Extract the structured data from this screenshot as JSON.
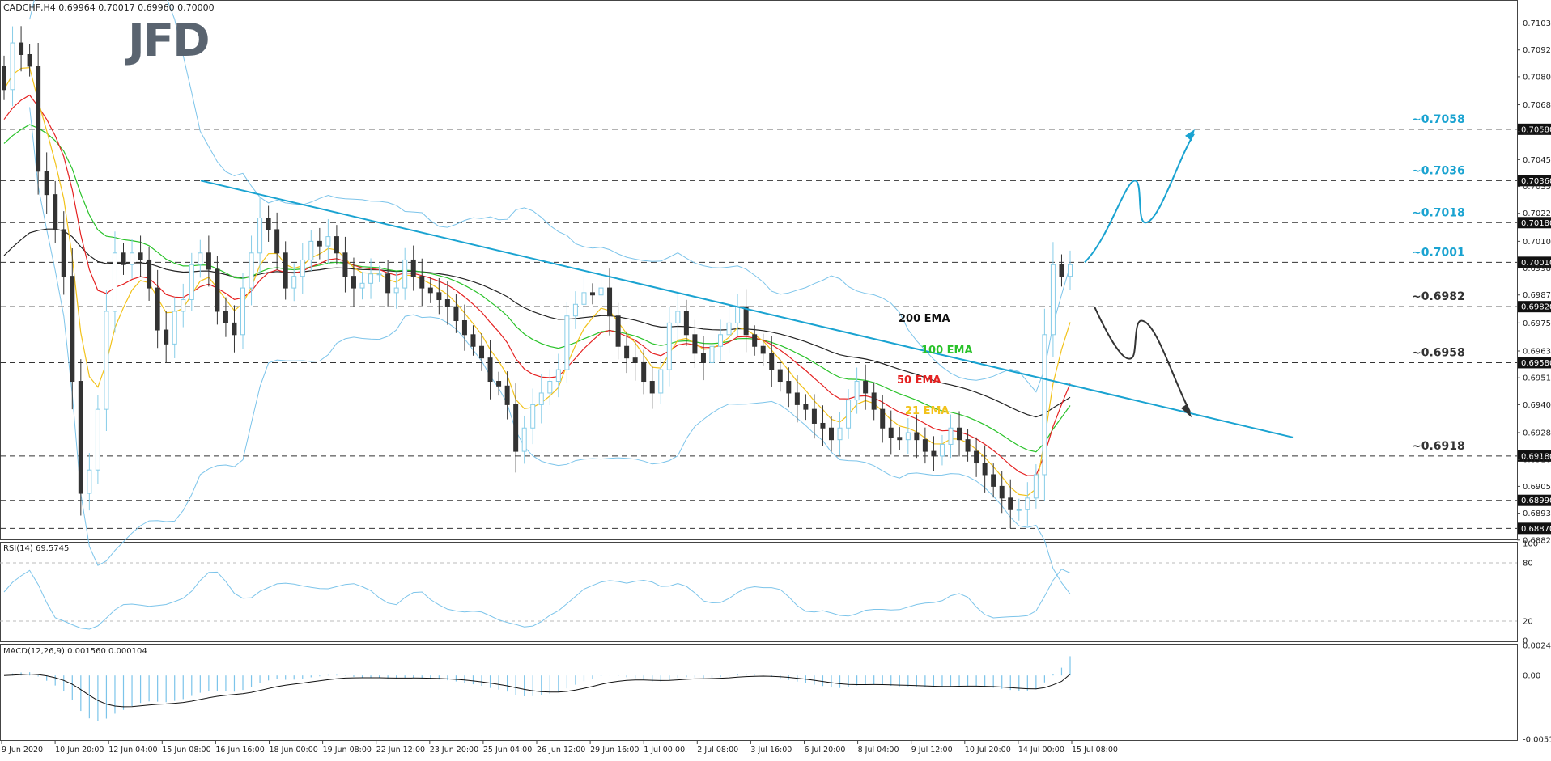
{
  "header": {
    "symbol_line": "CADCHF,H4  0.69964 0.70017 0.69960 0.70000",
    "rsi_line": "RSI(14) 69.5745",
    "macd_line": "MACD(12,26,9) 0.001560 0.000104"
  },
  "logo": {
    "text": "JFD",
    "color": "#5a6470"
  },
  "colors": {
    "cyan": "#1aa3d1",
    "ema200": "#222222",
    "ema100": "#29c229",
    "ema50": "#e52222",
    "ema21": "#f2c21a",
    "bollinger": "#7cc4ea",
    "bull": "#87cde8",
    "bear": "#333333"
  },
  "chart_data": {
    "type": "candlestick",
    "symbol": "CADCHF",
    "timeframe": "H4",
    "ylim": [
      0.6884,
      0.7112
    ],
    "y_ticks": [
      "0.71035",
      "0.70920",
      "0.70805",
      "0.70685",
      "0.70570",
      "0.70450",
      "0.70335",
      "0.70220",
      "0.70100",
      "0.69985",
      "0.69870",
      "0.69750",
      "0.69630",
      "0.69515",
      "0.69400",
      "0.69280",
      "0.69165",
      "0.69050",
      "0.68935",
      "0.68820"
    ],
    "x_labels": [
      "9 Jun 2020",
      "10 Jun 20:00",
      "12 Jun 04:00",
      "15 Jun 08:00",
      "16 Jun 16:00",
      "18 Jun 00:00",
      "19 Jun 08:00",
      "22 Jun 12:00",
      "23 Jun 20:00",
      "25 Jun 04:00",
      "26 Jun 12:00",
      "29 Jun 16:00",
      "1 Jul 00:00",
      "2 Jul 08:00",
      "3 Jul 16:00",
      "6 Jul 20:00",
      "8 Jul 04:00",
      "9 Jul 12:00",
      "10 Jul 20:00",
      "14 Jul 00:00",
      "15 Jul 08:00"
    ],
    "levels": [
      {
        "label": "~0.7058",
        "value": 0.7058,
        "tag": "0.70580"
      },
      {
        "label": "~0.7036",
        "value": 0.7036,
        "tag": "0.70360"
      },
      {
        "label": "~0.7018",
        "value": 0.7018,
        "tag": "0.70180"
      },
      {
        "label": "~0.7001",
        "value": 0.7001,
        "tag": "0.70010"
      },
      {
        "label": "~0.6982",
        "value": 0.6982,
        "tag": "0.69820"
      },
      {
        "label": "~0.6958",
        "value": 0.6958,
        "tag": "0.69580"
      },
      {
        "label": "~0.6918",
        "value": 0.6918,
        "tag": "0.69180"
      },
      {
        "label": "",
        "value": 0.6899,
        "tag": "0.68990"
      },
      {
        "label": "",
        "value": 0.6887,
        "tag": "0.68870"
      }
    ],
    "ema_labels": [
      {
        "text": "200 EMA",
        "color": "#111111"
      },
      {
        "text": "100 EMA",
        "color": "#29c229"
      },
      {
        "text": "50 EMA",
        "color": "#e52222"
      },
      {
        "text": "21 EMA",
        "color": "#f2c21a"
      }
    ],
    "trendline": {
      "from": 0.7036,
      "to": 0.6926
    },
    "candles_close": [
      0.7075,
      0.7095,
      0.709,
      0.7085,
      0.704,
      0.703,
      0.7015,
      0.6995,
      0.695,
      0.6902,
      0.6912,
      0.6938,
      0.698,
      0.7005,
      0.7,
      0.7005,
      0.7002,
      0.699,
      0.6972,
      0.6966,
      0.698,
      0.6985,
      0.7,
      0.7005,
      0.6998,
      0.698,
      0.6975,
      0.697,
      0.699,
      0.7005,
      0.702,
      0.7015,
      0.7005,
      0.699,
      0.6995,
      0.7002,
      0.701,
      0.7008,
      0.7012,
      0.7005,
      0.6995,
      0.699,
      0.6992,
      0.6996,
      0.6996,
      0.6988,
      0.699,
      0.7002,
      0.6995,
      0.699,
      0.6988,
      0.6985,
      0.6982,
      0.6976,
      0.697,
      0.6965,
      0.696,
      0.695,
      0.6948,
      0.694,
      0.692,
      0.693,
      0.694,
      0.6945,
      0.695,
      0.6955,
      0.6978,
      0.6983,
      0.6988,
      0.6987,
      0.699,
      0.6978,
      0.6965,
      0.696,
      0.6958,
      0.695,
      0.6945,
      0.6955,
      0.6975,
      0.698,
      0.697,
      0.6962,
      0.6958,
      0.6965,
      0.697,
      0.6975,
      0.6982,
      0.697,
      0.6965,
      0.6962,
      0.6955,
      0.695,
      0.6945,
      0.694,
      0.6938,
      0.6932,
      0.693,
      0.6925,
      0.693,
      0.6942,
      0.695,
      0.6945,
      0.6938,
      0.693,
      0.6926,
      0.6925,
      0.6928,
      0.6925,
      0.692,
      0.6918,
      0.6923,
      0.693,
      0.6925,
      0.692,
      0.6915,
      0.691,
      0.6905,
      0.69,
      0.6895,
      0.6895,
      0.69,
      0.691,
      0.697,
      0.7,
      0.6995,
      0.7
    ],
    "rsi": {
      "levels": [
        80,
        20
      ],
      "ticks": [
        "100",
        "80",
        "20",
        "0"
      ],
      "last": 69.5745
    },
    "macd": {
      "ticks": [
        "0.00244",
        "0.00",
        "-0.005171"
      ],
      "main": 0.00156,
      "signal": 0.000104
    }
  }
}
